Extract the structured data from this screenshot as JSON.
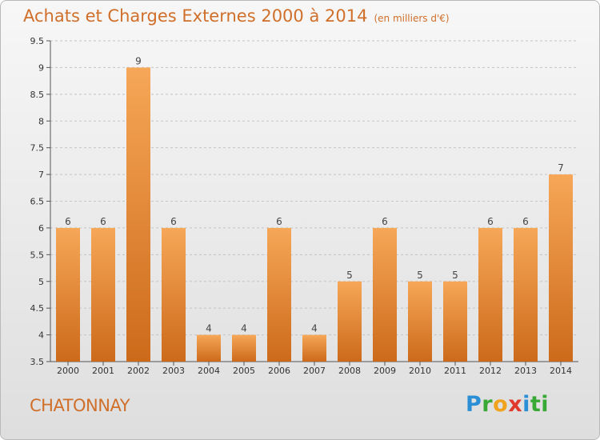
{
  "chart_data": {
    "type": "bar",
    "title": "Achats et Charges Externes 2000 à 2014",
    "subtitle": "(en milliers d'€)",
    "categories": [
      "2000",
      "2001",
      "2002",
      "2003",
      "2004",
      "2005",
      "2006",
      "2007",
      "2008",
      "2009",
      "2010",
      "2011",
      "2012",
      "2013",
      "2014"
    ],
    "values": [
      6,
      6,
      9,
      6,
      4,
      4,
      6,
      4,
      5,
      6,
      5,
      5,
      6,
      6,
      7
    ],
    "data_labels": [
      "6",
      "6",
      "9",
      "6",
      "4",
      "4",
      "6",
      "4",
      "5",
      "6",
      "5",
      "5",
      "6",
      "6",
      "7"
    ],
    "ylim": [
      3.5,
      9.5
    ],
    "yticks": [
      3.5,
      4,
      4.5,
      5,
      5.5,
      6,
      6.5,
      7,
      7.5,
      8,
      8.5,
      9,
      9.5
    ],
    "ytick_labels": [
      "3.5",
      "4",
      "4.5",
      "5",
      "5.5",
      "6",
      "6.5",
      "7",
      "7.5",
      "8",
      "8.5",
      "9",
      "9.5"
    ],
    "grid": "horizontal dashed",
    "xlabel": "",
    "ylabel": "",
    "bar_color": "#f0963f"
  },
  "footer": {
    "place": "CHATONNAY",
    "logo_letters": [
      "P",
      "r",
      "o",
      "x",
      "i",
      "ti"
    ]
  }
}
